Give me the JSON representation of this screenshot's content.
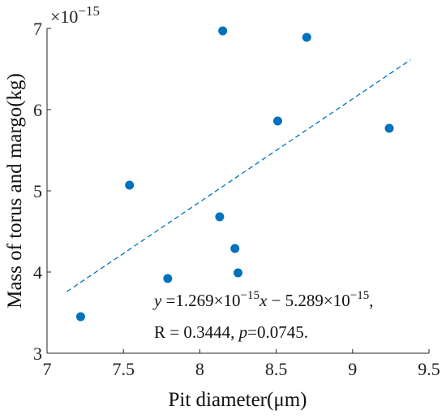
{
  "chart_data": {
    "type": "scatter",
    "title": "",
    "xlabel": "Pit diameter(μm)",
    "ylabel": "Mass of torus and margo(kg)",
    "y_multiplier_label": "×10−15",
    "y_multiplier_base": "×10",
    "y_multiplier_exponent": "−15",
    "xlim": [
      7,
      9.5
    ],
    "ylim": [
      3,
      7
    ],
    "x_ticks": [
      7,
      7.5,
      8,
      8.5,
      9,
      9.5
    ],
    "x_tick_labels": [
      "7",
      "7.5",
      "8",
      "8.5",
      "9",
      "9.5"
    ],
    "y_ticks": [
      3,
      4,
      5,
      6,
      7
    ],
    "y_tick_labels": [
      "3",
      "4",
      "5",
      "6",
      "7"
    ],
    "grid": false,
    "points": [
      {
        "x": 7.22,
        "y": 3.45
      },
      {
        "x": 7.54,
        "y": 5.07
      },
      {
        "x": 7.79,
        "y": 3.92
      },
      {
        "x": 8.13,
        "y": 4.68
      },
      {
        "x": 8.15,
        "y": 6.97
      },
      {
        "x": 8.23,
        "y": 4.29
      },
      {
        "x": 8.25,
        "y": 3.99
      },
      {
        "x": 8.51,
        "y": 5.86
      },
      {
        "x": 8.7,
        "y": 6.89
      },
      {
        "x": 9.24,
        "y": 5.77
      }
    ],
    "fit_line": {
      "slope": 1.269,
      "intercept": -5.289,
      "x_range": [
        7.13,
        9.38
      ],
      "style": "dashed"
    },
    "annotation": {
      "line1": {
        "y": "y",
        "eq": " =1.269×10",
        "exp1": "−15",
        "x": "x",
        "minus": " − 5.289×10",
        "exp2": "−15",
        "comma": ","
      },
      "line2": {
        "r": "R = 0.3444, ",
        "p": "p",
        "pval": "=0.0745."
      }
    },
    "colors": {
      "points": "#0072BD",
      "fit_line": "#0072BD",
      "axes": "#262626"
    }
  }
}
